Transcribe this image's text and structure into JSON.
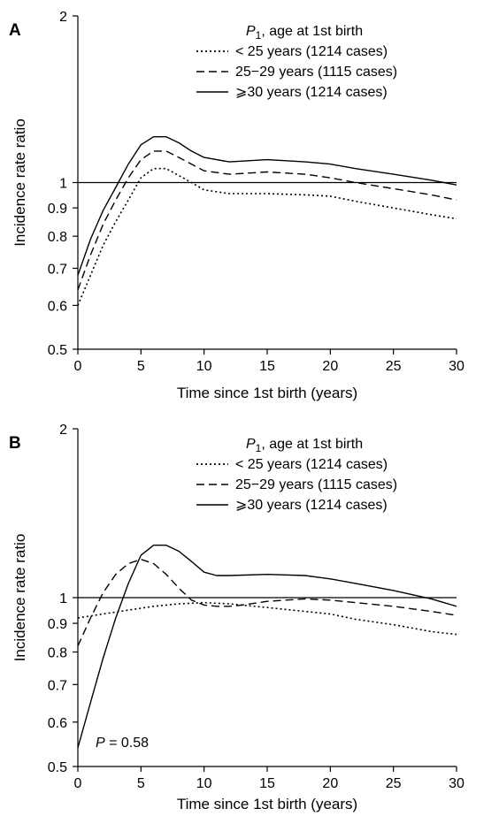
{
  "chart_data": [
    {
      "type": "line",
      "panel_label": "A",
      "xlabel": "Time since 1st birth (years)",
      "ylabel": "Incidence rate ratio",
      "xlim": [
        0,
        30
      ],
      "ylim": [
        0.5,
        2
      ],
      "yscale": "log",
      "x_ticks": [
        "0",
        "5",
        "10",
        "15",
        "20",
        "25",
        "30"
      ],
      "y_ticks": [
        "0.5",
        "0.6",
        "0.7",
        "0.8",
        "0.9",
        "1",
        "2"
      ],
      "reference_line": 1,
      "legend_title_main": "P",
      "legend_title_sub": "1",
      "legend_title_rest": ", age at 1st birth",
      "legend_position": "top-right",
      "annotation": "",
      "series": [
        {
          "name": "< 25 years (1214 cases)",
          "dash": "dotted",
          "x": [
            0,
            1,
            2,
            3,
            4,
            5,
            6,
            7,
            8,
            9,
            10,
            12,
            15,
            18,
            20,
            22,
            25,
            28,
            30
          ],
          "values": [
            0.6,
            0.68,
            0.77,
            0.85,
            0.93,
            1.02,
            1.06,
            1.06,
            1.03,
            1.0,
            0.97,
            0.955,
            0.955,
            0.95,
            0.945,
            0.925,
            0.9,
            0.875,
            0.86
          ]
        },
        {
          "name": "25−29 years (1115 cases)",
          "dash": "dashed",
          "x": [
            0,
            1,
            2,
            3,
            4,
            5,
            6,
            7,
            8,
            9,
            10,
            12,
            15,
            18,
            20,
            22,
            25,
            28,
            30
          ],
          "values": [
            0.64,
            0.74,
            0.84,
            0.93,
            1.02,
            1.1,
            1.14,
            1.14,
            1.11,
            1.08,
            1.05,
            1.035,
            1.045,
            1.035,
            1.02,
            1.0,
            0.975,
            0.95,
            0.93
          ]
        },
        {
          "name": "⩾30 years (1214 cases)",
          "dash": "solid",
          "x": [
            0,
            1,
            2,
            3,
            4,
            5,
            6,
            7,
            8,
            9,
            10,
            12,
            15,
            18,
            20,
            22,
            25,
            28,
            30
          ],
          "values": [
            0.68,
            0.79,
            0.89,
            0.98,
            1.08,
            1.17,
            1.21,
            1.21,
            1.18,
            1.14,
            1.11,
            1.09,
            1.1,
            1.09,
            1.08,
            1.06,
            1.035,
            1.01,
            0.99
          ]
        }
      ]
    },
    {
      "type": "line",
      "panel_label": "B",
      "xlabel": "Time since 1st birth (years)",
      "ylabel": "Incidence rate ratio",
      "xlim": [
        0,
        30
      ],
      "ylim": [
        0.5,
        2
      ],
      "yscale": "log",
      "x_ticks": [
        "0",
        "5",
        "10",
        "15",
        "20",
        "25",
        "30"
      ],
      "y_ticks": [
        "0.5",
        "0.6",
        "0.7",
        "0.8",
        "0.9",
        "1",
        "2"
      ],
      "reference_line": 1,
      "legend_title_main": "P",
      "legend_title_sub": "1",
      "legend_title_rest": ", age at 1st birth",
      "legend_position": "top-right",
      "annotation": "P = 0.58",
      "series": [
        {
          "name": "< 25 years (1214 cases)",
          "dash": "dotted",
          "x": [
            0,
            2,
            4,
            6,
            8,
            10,
            12,
            15,
            18,
            20,
            22,
            25,
            28,
            30
          ],
          "values": [
            0.92,
            0.935,
            0.95,
            0.965,
            0.975,
            0.98,
            0.975,
            0.96,
            0.945,
            0.935,
            0.915,
            0.895,
            0.87,
            0.86
          ]
        },
        {
          "name": "25−29 years (1115 cases)",
          "dash": "dashed",
          "x": [
            0,
            1,
            2,
            3,
            4,
            5,
            6,
            7,
            8,
            9,
            10,
            11,
            12,
            13,
            15,
            18,
            20,
            22,
            25,
            28,
            30
          ],
          "values": [
            0.82,
            0.92,
            1.02,
            1.1,
            1.15,
            1.17,
            1.15,
            1.1,
            1.04,
            0.99,
            0.97,
            0.965,
            0.965,
            0.97,
            0.985,
            0.995,
            0.99,
            0.98,
            0.965,
            0.945,
            0.93
          ]
        },
        {
          "name": "⩾30 years (1214 cases)",
          "dash": "solid",
          "x": [
            0,
            1,
            2,
            3,
            4,
            5,
            6,
            7,
            8,
            9,
            10,
            11,
            12,
            15,
            18,
            20,
            22,
            25,
            28,
            30
          ],
          "values": [
            0.54,
            0.65,
            0.78,
            0.92,
            1.06,
            1.19,
            1.24,
            1.24,
            1.21,
            1.16,
            1.11,
            1.095,
            1.095,
            1.1,
            1.095,
            1.08,
            1.06,
            1.03,
            0.995,
            0.965
          ]
        }
      ]
    }
  ]
}
